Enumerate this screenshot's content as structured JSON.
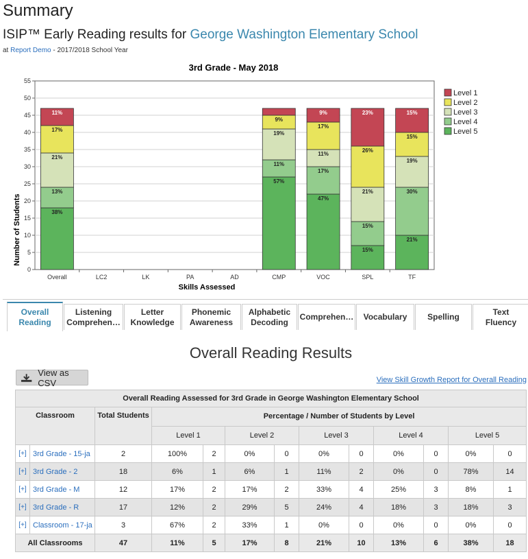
{
  "header": {
    "title": "Summary",
    "subtitle_prefix": "ISIP™ Early Reading results for ",
    "school_name": "George Washington Elementary School",
    "meta_prefix": "at ",
    "meta_link": "Report Demo",
    "meta_suffix": " - 2017/2018 School Year"
  },
  "chart_data": {
    "type": "bar",
    "stacked": true,
    "title": "3rd Grade - May 2018",
    "xlabel": "Skills Assessed",
    "ylabel": "Number of Students",
    "ylim": [
      0,
      55
    ],
    "yticks": [
      0,
      5,
      10,
      15,
      20,
      25,
      30,
      35,
      40,
      45,
      50,
      55
    ],
    "grid": true,
    "legend_position": "right",
    "categories": [
      "Overall",
      "LC2",
      "LK",
      "PA",
      "AD",
      "CMP",
      "VOC",
      "SPL",
      "TF"
    ],
    "series": [
      {
        "name": "Level 5",
        "color": "#5cb45c",
        "values": [
          18,
          0,
          0,
          0,
          0,
          27,
          22,
          7,
          10
        ],
        "labels": [
          "38%",
          "",
          "",
          "",
          "",
          "57%",
          "47%",
          "15%",
          "21%"
        ]
      },
      {
        "name": "Level 4",
        "color": "#93cc8d",
        "values": [
          6,
          0,
          0,
          0,
          0,
          5,
          8,
          7,
          14
        ],
        "labels": [
          "13%",
          "",
          "",
          "",
          "",
          "11%",
          "17%",
          "15%",
          "30%"
        ]
      },
      {
        "name": "Level 3",
        "color": "#d5e2b8",
        "values": [
          10,
          0,
          0,
          0,
          0,
          9,
          5,
          10,
          9
        ],
        "labels": [
          "21%",
          "",
          "",
          "",
          "",
          "19%",
          "11%",
          "21%",
          "19%"
        ]
      },
      {
        "name": "Level 2",
        "color": "#e8e45c",
        "values": [
          8,
          0,
          0,
          0,
          0,
          4,
          8,
          12,
          7
        ],
        "labels": [
          "17%",
          "",
          "",
          "",
          "",
          "9%",
          "17%",
          "26%",
          "15%"
        ]
      },
      {
        "name": "Level 1",
        "color": "#c34654",
        "values": [
          5,
          0,
          0,
          0,
          0,
          2,
          4,
          11,
          7
        ],
        "labels": [
          "11%",
          "",
          "",
          "",
          "",
          "",
          "9%",
          "23%",
          "15%"
        ]
      }
    ],
    "legend": [
      "Level 1",
      "Level 2",
      "Level 3",
      "Level 4",
      "Level 5"
    ]
  },
  "tabs": [
    {
      "line1": "Overall",
      "line2": "Reading",
      "active": true
    },
    {
      "line1": "Listening",
      "line2": "Comprehen…",
      "active": false
    },
    {
      "line1": "Letter",
      "line2": "Knowledge",
      "active": false
    },
    {
      "line1": "Phonemic",
      "line2": "Awareness",
      "active": false
    },
    {
      "line1": "Alphabetic",
      "line2": "Decoding",
      "active": false
    },
    {
      "line1": "Comprehen…",
      "line2": "",
      "active": false
    },
    {
      "line1": "Vocabulary",
      "line2": "",
      "active": false
    },
    {
      "line1": "Spelling",
      "line2": "",
      "active": false
    },
    {
      "line1": "Text",
      "line2": "Fluency",
      "active": false
    }
  ],
  "section_title": "Overall Reading Results",
  "csv_button": "View as CSV",
  "growth_link": "View Skill Growth Report for Overall Reading",
  "table": {
    "caption": "Overall Reading Assessed for 3rd Grade in George Washington Elementary School",
    "col_classroom": "Classroom",
    "col_total": "Total Students",
    "col_group": "Percentage / Number of Students by Level",
    "levels": [
      "Level 1",
      "Level 2",
      "Level 3",
      "Level 4",
      "Level 5"
    ],
    "expand_label": "[+]",
    "rows": [
      {
        "name": "3rd Grade - 15-ja",
        "total": "2",
        "cells": [
          "100%",
          "2",
          "0%",
          "0",
          "0%",
          "0",
          "0%",
          "0",
          "0%",
          "0"
        ]
      },
      {
        "name": "3rd Grade - 2",
        "total": "18",
        "cells": [
          "6%",
          "1",
          "6%",
          "1",
          "11%",
          "2",
          "0%",
          "0",
          "78%",
          "14"
        ]
      },
      {
        "name": "3rd Grade - M",
        "total": "12",
        "cells": [
          "17%",
          "2",
          "17%",
          "2",
          "33%",
          "4",
          "25%",
          "3",
          "8%",
          "1"
        ]
      },
      {
        "name": "3rd Grade - R",
        "total": "17",
        "cells": [
          "12%",
          "2",
          "29%",
          "5",
          "24%",
          "4",
          "18%",
          "3",
          "18%",
          "3"
        ]
      },
      {
        "name": "Classroom - 17-ja",
        "total": "3",
        "cells": [
          "67%",
          "2",
          "33%",
          "1",
          "0%",
          "0",
          "0%",
          "0",
          "0%",
          "0"
        ]
      }
    ],
    "total_row": {
      "name": "All Classrooms",
      "total": "47",
      "cells": [
        "11%",
        "5",
        "17%",
        "8",
        "21%",
        "10",
        "13%",
        "6",
        "38%",
        "18"
      ]
    }
  }
}
